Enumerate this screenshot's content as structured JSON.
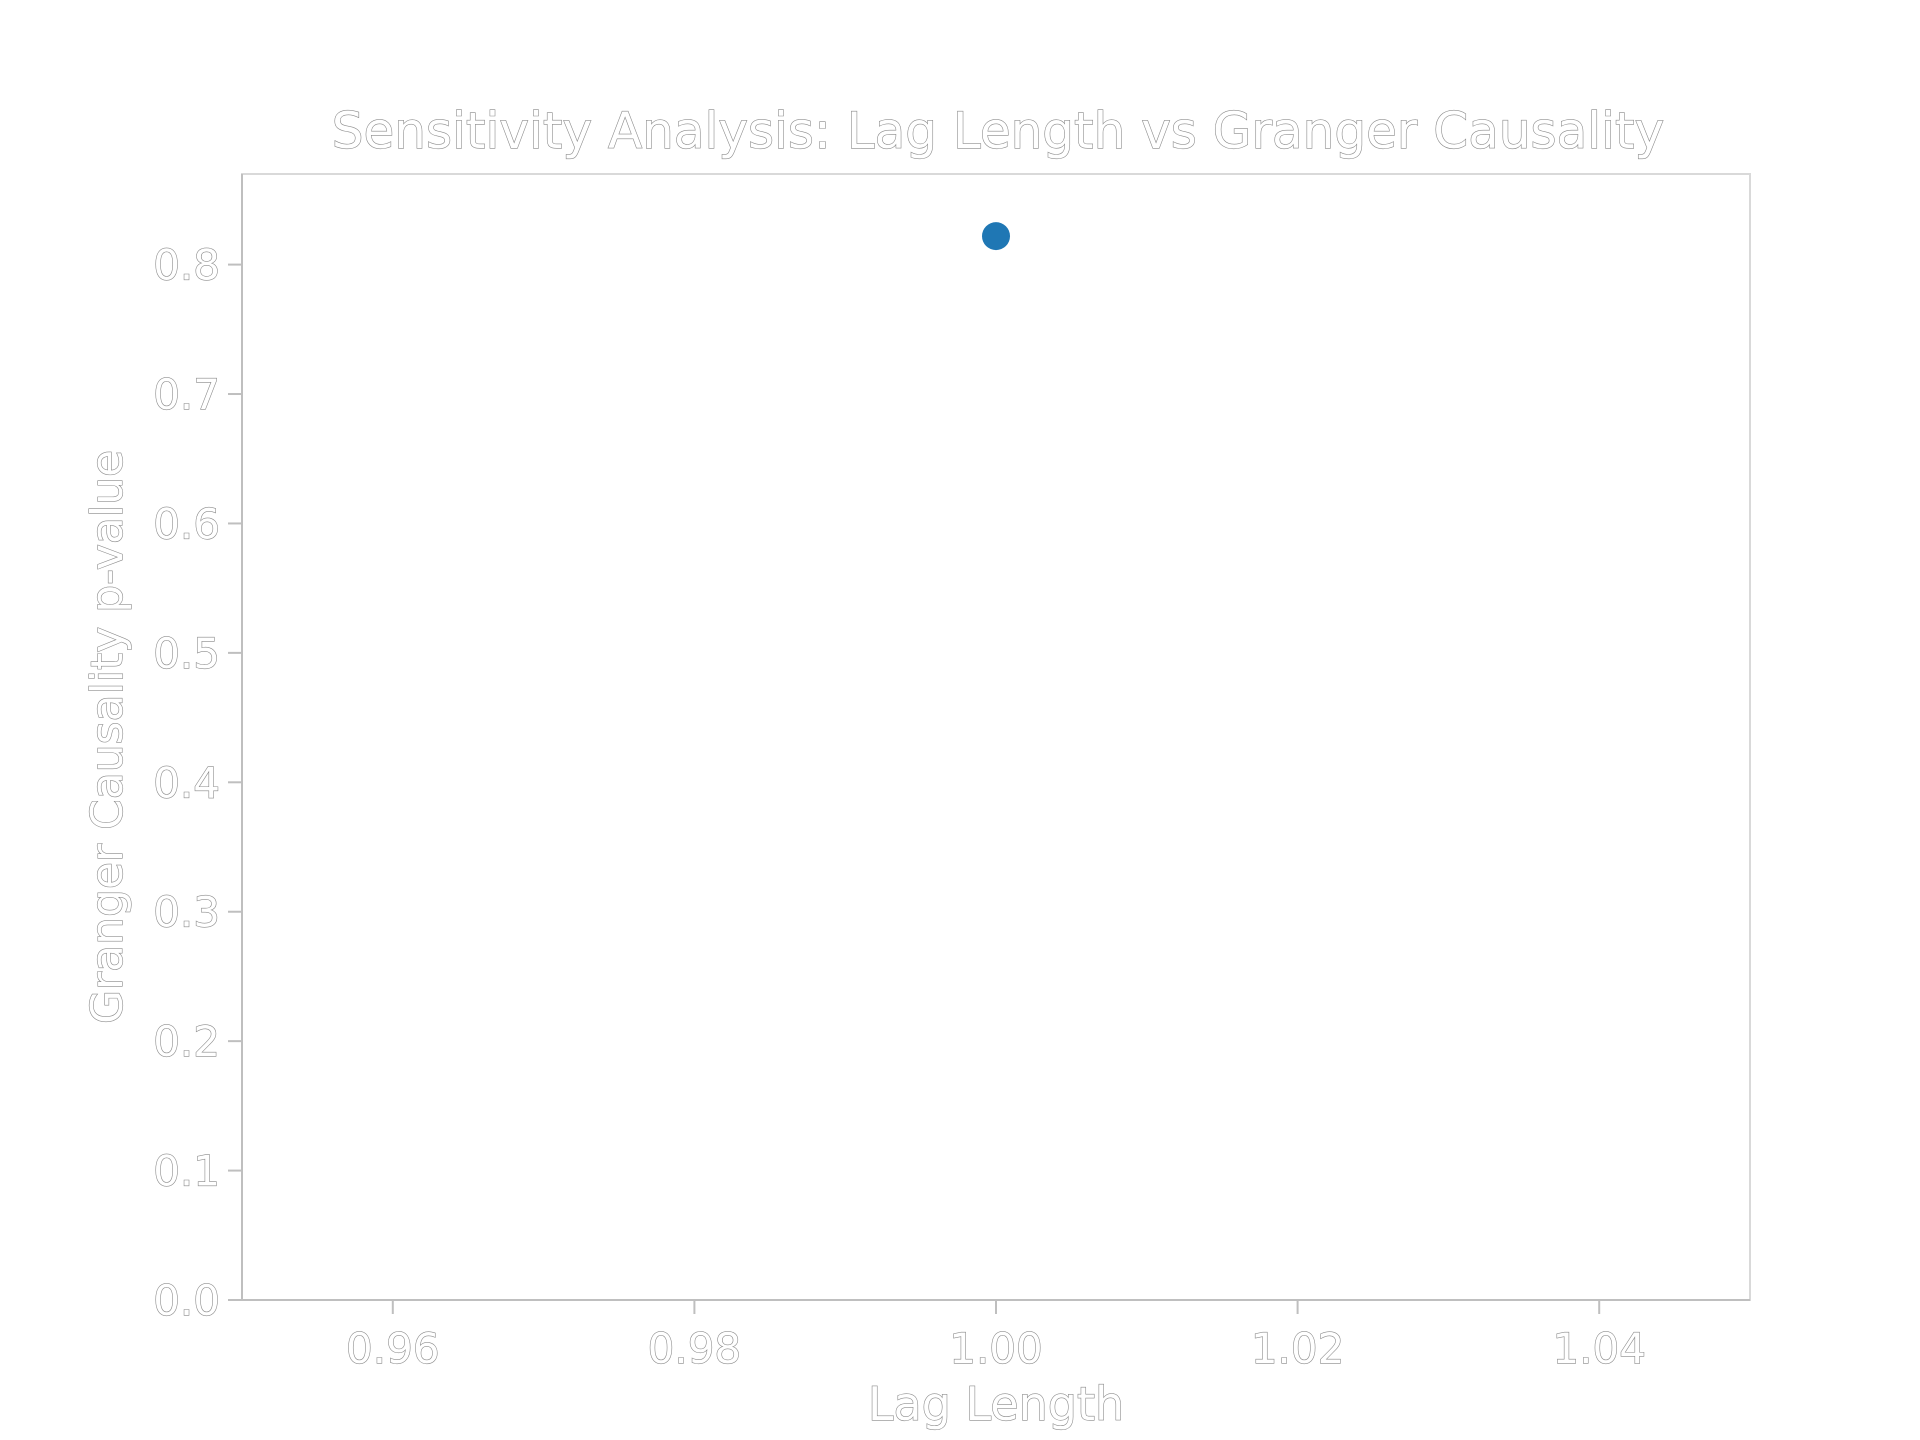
{
  "chart_data": {
    "type": "scatter",
    "title": "Sensitivity Analysis: Lag Length vs Granger Causality",
    "xlabel": "Lag Length",
    "ylabel": "Granger Causality p-value",
    "xlim": [
      0.95,
      1.05
    ],
    "ylim": [
      0.0,
      0.87
    ],
    "xticks": [
      0.96,
      0.98,
      1.0,
      1.02,
      1.04
    ],
    "xtick_labels": [
      "0.96",
      "0.98",
      "1.00",
      "1.02",
      "1.04"
    ],
    "yticks": [
      0.0,
      0.1,
      0.2,
      0.3,
      0.4,
      0.5,
      0.6,
      0.7,
      0.8
    ],
    "ytick_labels": [
      "0.0",
      "0.1",
      "0.2",
      "0.3",
      "0.4",
      "0.5",
      "0.6",
      "0.7",
      "0.8"
    ],
    "grid": false,
    "series": [
      {
        "x": [
          1.0
        ],
        "y": [
          0.822
        ],
        "color": "#1f77b4"
      }
    ]
  }
}
